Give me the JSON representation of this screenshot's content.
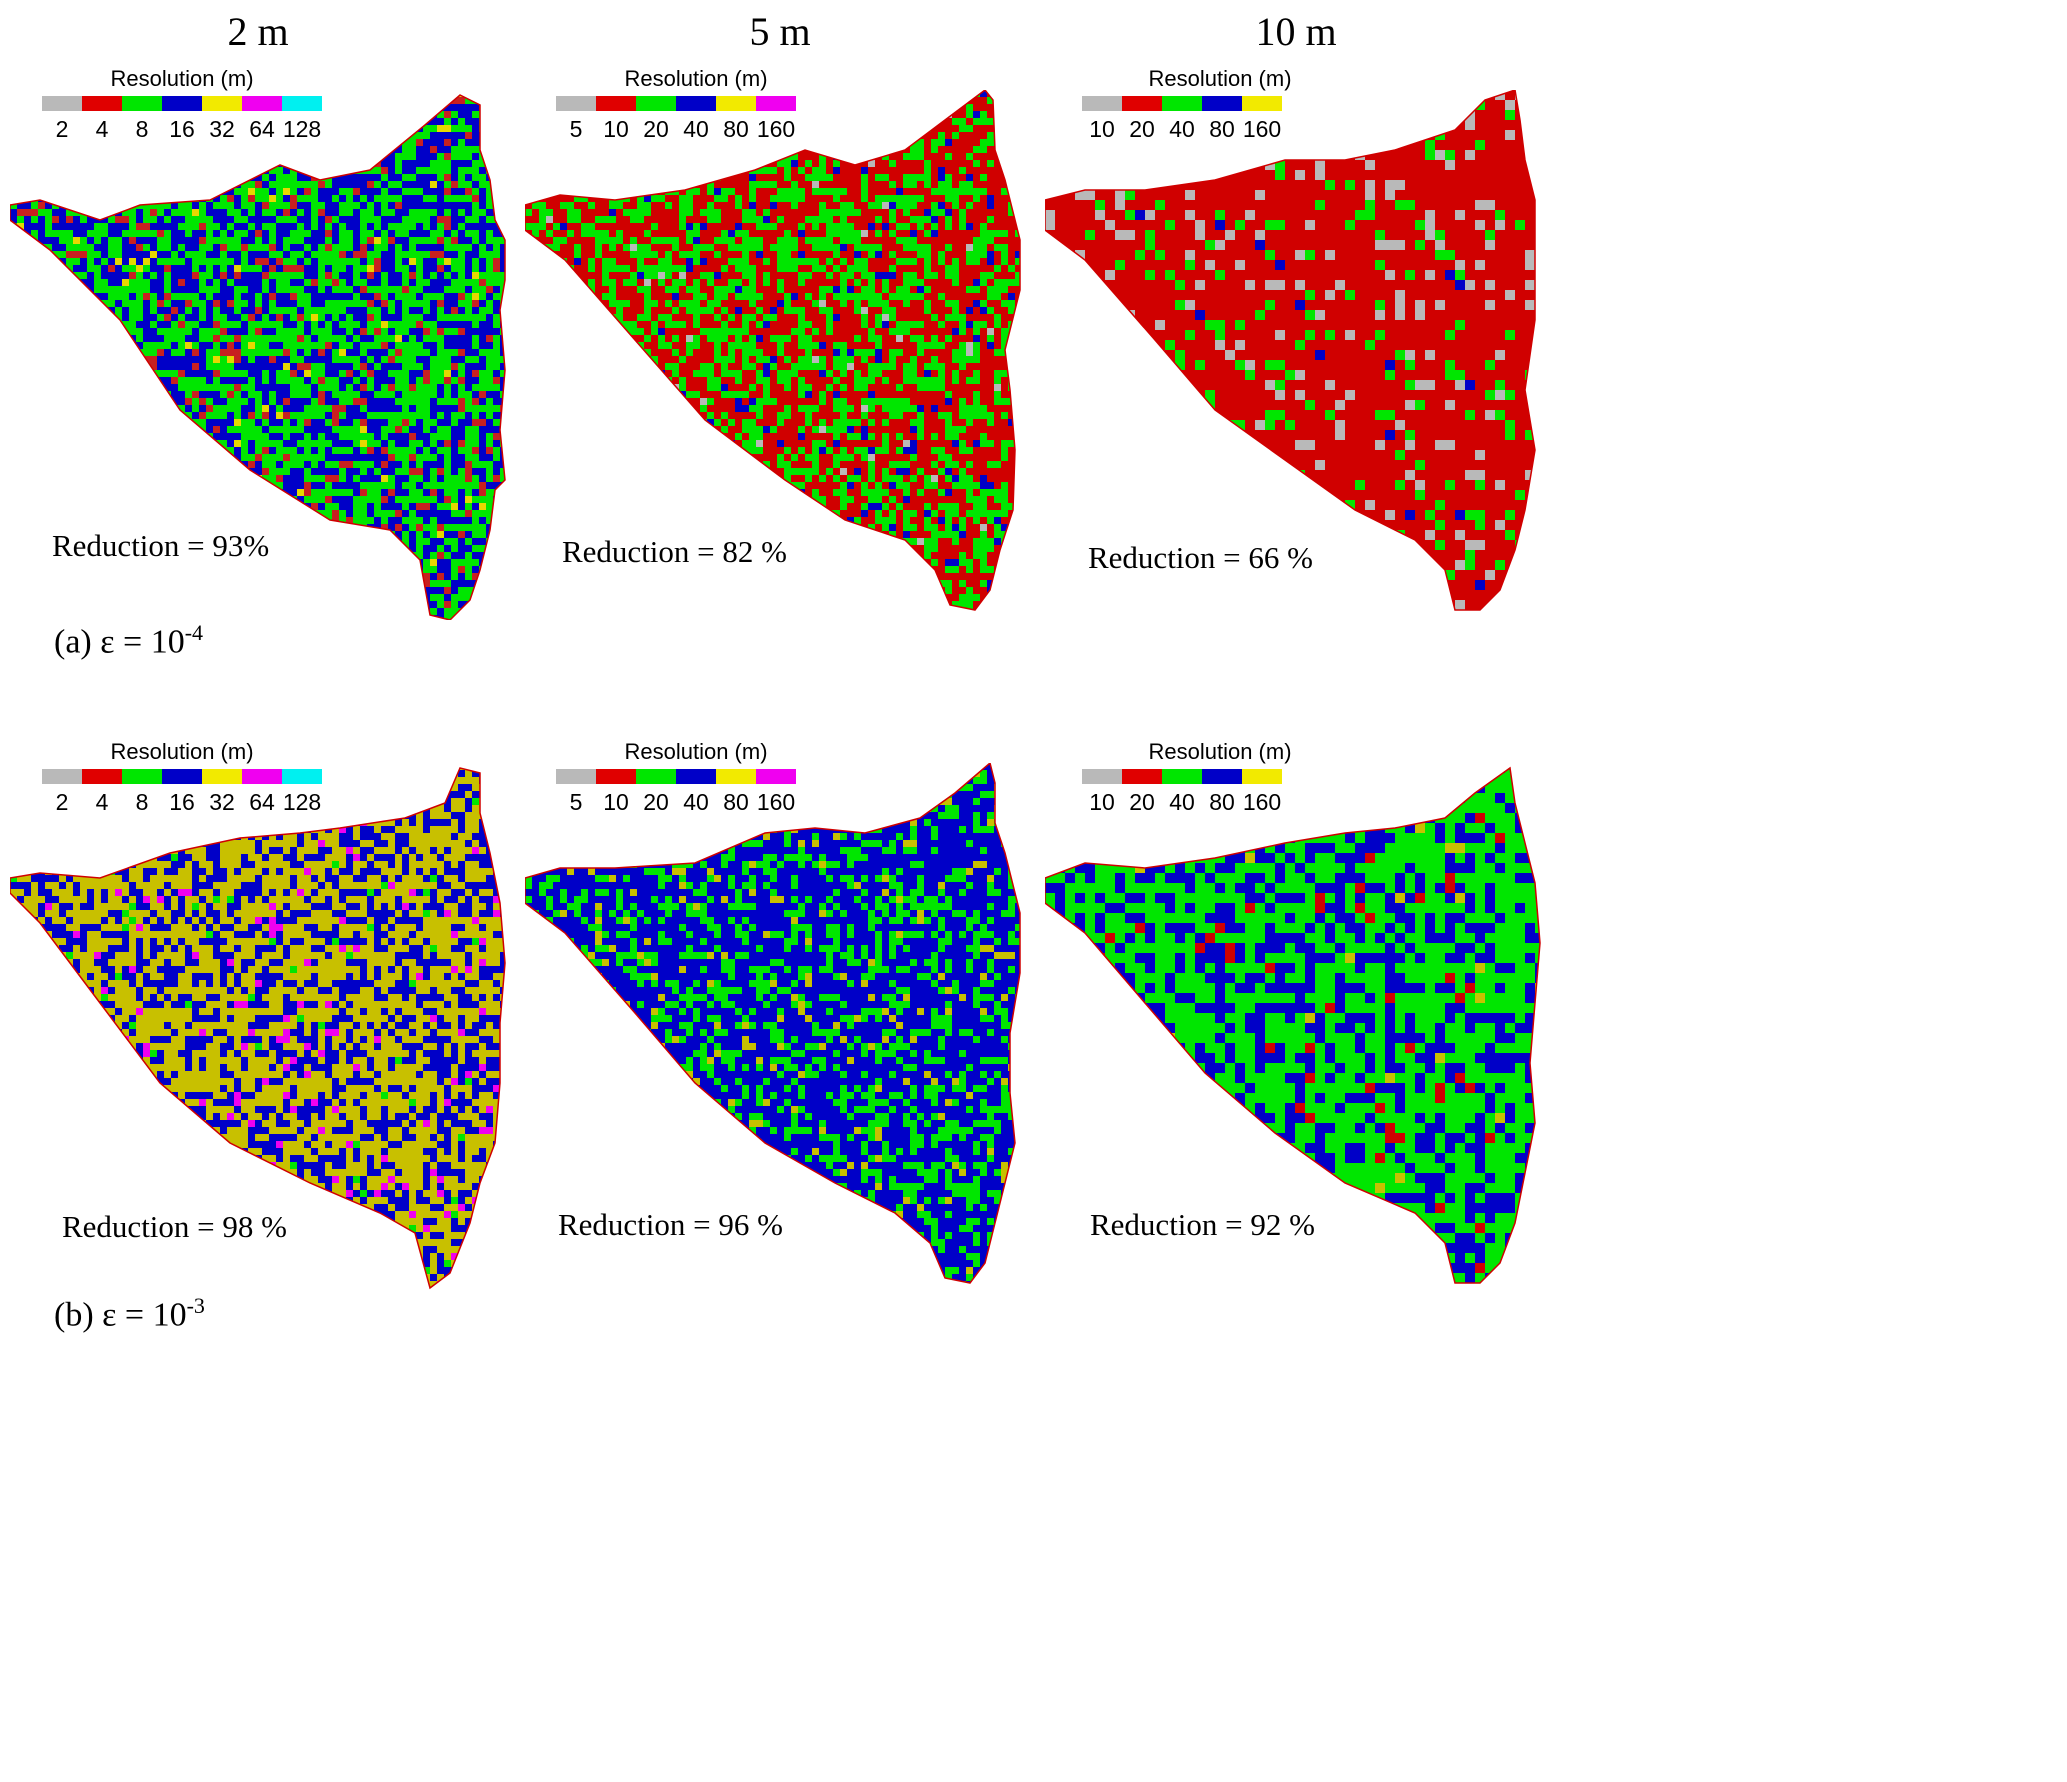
{
  "columns": [
    {
      "title": "2 m"
    },
    {
      "title": "5 m"
    },
    {
      "title": "10 m"
    }
  ],
  "rows": [
    {
      "label_prefix": "(a) ε = 10",
      "label_exp": "-4"
    },
    {
      "label_prefix": "(b) ε = 10",
      "label_exp": "-3"
    }
  ],
  "legend_title": "Resolution (m)",
  "legends": [
    {
      "labels": [
        "2",
        "4",
        "8",
        "16",
        "32",
        "64",
        "128"
      ],
      "colors": [
        "#b9b9b9",
        "#e00000",
        "#00e600",
        "#0000c8",
        "#f2ea00",
        "#f000f0",
        "#00f0f0"
      ]
    },
    {
      "labels": [
        "5",
        "10",
        "20",
        "40",
        "80",
        "160"
      ],
      "colors": [
        "#b9b9b9",
        "#e00000",
        "#00e600",
        "#0000c8",
        "#f2ea00",
        "#f000f0"
      ]
    },
    {
      "labels": [
        "10",
        "20",
        "40",
        "80",
        "160"
      ],
      "colors": [
        "#b9b9b9",
        "#e00000",
        "#00e600",
        "#0000c8",
        "#f2ea00"
      ]
    }
  ],
  "panels": [
    {
      "reduction": "Reduction = 93%",
      "mix": {
        "#00e600": 0.48,
        "#0000c8": 0.4,
        "#c82020": 0.1,
        "#e6d800": 0.02
      }
    },
    {
      "reduction": "Reduction = 82 %",
      "mix": {
        "#d00000": 0.52,
        "#00e600": 0.42,
        "#0000c8": 0.05,
        "#b9b9b9": 0.01
      }
    },
    {
      "reduction": "Reduction = 66 %",
      "mix": {
        "#d00000": 0.8,
        "#00e600": 0.1,
        "#b9b9b9": 0.09,
        "#0000c8": 0.01
      }
    },
    {
      "reduction": "Reduction = 98 %",
      "mix": {
        "#c8c000": 0.56,
        "#0000c8": 0.38,
        "#f000f0": 0.04,
        "#00e600": 0.02
      }
    },
    {
      "reduction": "Reduction = 96 %",
      "mix": {
        "#0000c8": 0.64,
        "#00e600": 0.3,
        "#c8c000": 0.06
      }
    },
    {
      "reduction": "Reduction = 92 %",
      "mix": {
        "#00e600": 0.6,
        "#0000c8": 0.36,
        "#d00000": 0.03,
        "#c8c000": 0.01
      }
    }
  ]
}
